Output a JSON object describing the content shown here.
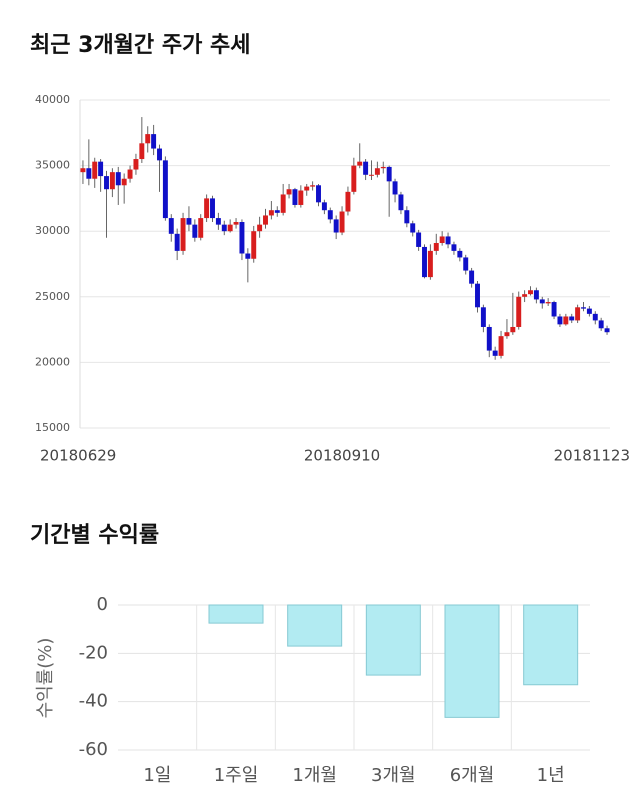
{
  "chart_data": [
    {
      "type": "candlestick",
      "title": "최근 3개월간 주가 추세",
      "up_color": "#d81e1e",
      "down_color": "#1010c8",
      "ylim": [
        15000,
        40000
      ],
      "yticks": [
        15000,
        20000,
        25000,
        30000,
        35000,
        40000
      ],
      "grid": true,
      "categories": [
        "20180629",
        null,
        null,
        null,
        null,
        null,
        null,
        null,
        null,
        null,
        null,
        null,
        null,
        null,
        null,
        null,
        null,
        null,
        null,
        null,
        null,
        null,
        null,
        null,
        null,
        null,
        null,
        null,
        null,
        null,
        null,
        null,
        null,
        null,
        null,
        null,
        null,
        null,
        null,
        null,
        null,
        null,
        null,
        null,
        "20180910",
        null,
        null,
        null,
        null,
        null,
        null,
        null,
        null,
        null,
        null,
        null,
        null,
        null,
        null,
        null,
        null,
        null,
        null,
        null,
        null,
        null,
        null,
        null,
        null,
        null,
        null,
        null,
        null,
        null,
        null,
        null,
        null,
        null,
        null,
        null,
        null,
        null,
        null,
        null,
        null,
        null,
        null,
        null,
        null,
        "20181123"
      ],
      "open": [
        34500,
        34800,
        34000,
        35300,
        34200,
        33200,
        34500,
        33500,
        34000,
        34700,
        35500,
        36700,
        37400,
        36300,
        35400,
        31000,
        29800,
        28500,
        31000,
        30500,
        29500,
        31000,
        32500,
        31000,
        30500,
        30000,
        30500,
        30700,
        28300,
        27900,
        30000,
        30500,
        31200,
        31600,
        31400,
        32800,
        33200,
        32000,
        33100,
        33400,
        33500,
        32200,
        31600,
        30900,
        29900,
        31500,
        33000,
        35000,
        35300,
        34300,
        34300,
        34800,
        34900,
        33800,
        32800,
        31600,
        30600,
        29900,
        28800,
        26500,
        28500,
        29100,
        29600,
        29000,
        28500,
        28000,
        27000,
        26000,
        24200,
        22700,
        20900,
        20500,
        22000,
        22300,
        22700,
        25000,
        25200,
        25500,
        24800,
        24500,
        24600,
        23500,
        22900,
        23500,
        23200,
        24200,
        24100,
        23700,
        23200,
        22600
      ],
      "high": [
        35400,
        37000,
        35600,
        35500,
        34600,
        34800,
        34900,
        34400,
        35000,
        35900,
        38700,
        38000,
        38100,
        36600,
        35700,
        31300,
        30200,
        31400,
        31900,
        30900,
        31300,
        32800,
        32700,
        31400,
        30800,
        30900,
        31000,
        30900,
        28700,
        30400,
        31100,
        31700,
        32300,
        31900,
        33600,
        33600,
        33300,
        33500,
        33600,
        33800,
        33600,
        32400,
        31800,
        31200,
        31900,
        33400,
        35600,
        36700,
        35500,
        35400,
        35300,
        35300,
        35000,
        34000,
        33000,
        31900,
        30800,
        30100,
        29000,
        29000,
        29800,
        30000,
        29900,
        29200,
        28700,
        28200,
        27200,
        26200,
        24400,
        22900,
        21200,
        22400,
        23300,
        25300,
        25400,
        25500,
        25800,
        25700,
        25000,
        24900,
        24700,
        23700,
        23700,
        23700,
        24400,
        24600,
        24300,
        23900,
        23400,
        22800
      ],
      "low": [
        33600,
        33500,
        33300,
        33000,
        29500,
        32600,
        32000,
        32100,
        33700,
        34300,
        35200,
        36000,
        35800,
        33000,
        30800,
        29200,
        27800,
        28200,
        30000,
        29200,
        29300,
        30700,
        30700,
        30100,
        29700,
        29900,
        30200,
        27800,
        26100,
        27600,
        29500,
        30200,
        30900,
        31100,
        31200,
        32500,
        31800,
        31800,
        32700,
        33100,
        31900,
        31300,
        30600,
        29400,
        29700,
        31200,
        32800,
        34800,
        33900,
        33900,
        34100,
        34400,
        31100,
        32200,
        31300,
        30300,
        29600,
        28500,
        26400,
        26300,
        28200,
        28900,
        28700,
        28200,
        27700,
        26700,
        25700,
        23800,
        22300,
        20400,
        20200,
        20300,
        21800,
        22100,
        22500,
        24600,
        25100,
        24500,
        24100,
        24300,
        23300,
        22700,
        22800,
        23000,
        23000,
        23900,
        23500,
        22900,
        22400,
        22100
      ],
      "close": [
        34800,
        34000,
        35300,
        34200,
        33200,
        34500,
        33500,
        34000,
        34700,
        35500,
        36700,
        37400,
        36300,
        35400,
        31000,
        29800,
        28500,
        31000,
        30500,
        29500,
        31000,
        32500,
        31000,
        30500,
        30000,
        30500,
        30700,
        28300,
        27900,
        30000,
        30500,
        31200,
        31600,
        31400,
        32800,
        33200,
        32000,
        33100,
        33400,
        33500,
        32200,
        31600,
        30900,
        29900,
        31500,
        33000,
        35000,
        35300,
        34300,
        34300,
        34800,
        34900,
        33800,
        32800,
        31600,
        30600,
        29900,
        28800,
        26500,
        28500,
        29100,
        29600,
        29000,
        28500,
        28000,
        27000,
        26000,
        24200,
        22700,
        20900,
        20500,
        22000,
        22300,
        22700,
        25000,
        25200,
        25500,
        24800,
        24500,
        24600,
        23500,
        22900,
        23500,
        23200,
        24200,
        24100,
        23700,
        23200,
        22600,
        22300
      ]
    },
    {
      "type": "bar",
      "title": "기간별 수익률",
      "y_label": "수익률(%)",
      "categories": [
        "1일",
        "1주일",
        "1개월",
        "3개월",
        "6개월",
        "1년"
      ],
      "values": [
        0,
        -7.5,
        -17,
        -29,
        -46.5,
        -33
      ],
      "color": "#b2ebf2",
      "edge_color": "#86c9d3",
      "ylim": [
        -60,
        0
      ],
      "yticks": [
        0,
        -20,
        -40,
        -60
      ],
      "grid": true
    }
  ]
}
